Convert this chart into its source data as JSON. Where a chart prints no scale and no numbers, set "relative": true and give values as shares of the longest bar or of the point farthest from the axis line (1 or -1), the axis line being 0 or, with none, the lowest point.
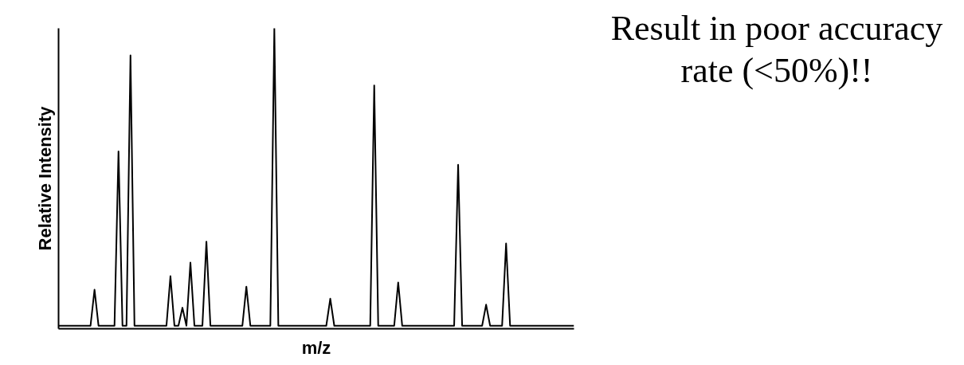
{
  "chart_data": {
    "type": "line",
    "relative": true,
    "xlabel": "m/z",
    "ylabel": "Relative Intensity",
    "grid": false,
    "annotations": [
      "Result in poor accuracy rate (<50%)!!"
    ],
    "categories": [
      null,
      null,
      null,
      null,
      null,
      null,
      null,
      null,
      null,
      null,
      null,
      null,
      null,
      null,
      null,
      null,
      null,
      null,
      null,
      null,
      null,
      null,
      null,
      null,
      null,
      null,
      null,
      null,
      null,
      null,
      null,
      null,
      null,
      null,
      null,
      null,
      null,
      null,
      null,
      null,
      null,
      null,
      null,
      null,
      null,
      null,
      null,
      null,
      null,
      null,
      null,
      null,
      null,
      null,
      null,
      null,
      null,
      null,
      null,
      null,
      null,
      null,
      null,
      null,
      null,
      null,
      null,
      null,
      null,
      null,
      null,
      null,
      null,
      null,
      null,
      null,
      null,
      null,
      null,
      null,
      null,
      null,
      null,
      null,
      null,
      null,
      null,
      null,
      null,
      null,
      null,
      null,
      null,
      null,
      null,
      null,
      null,
      null,
      null,
      null,
      null,
      null,
      null,
      null,
      null,
      null,
      null,
      null,
      null,
      null,
      null,
      null,
      null,
      null,
      null,
      null,
      null,
      null,
      null,
      null,
      null,
      null,
      null,
      null,
      null,
      null,
      null,
      null,
      null,
      null
    ],
    "series": [
      {
        "color": "#000000",
        "values": [
          0.01,
          0.01,
          0.01,
          0.01,
          0.01,
          0.01,
          0.01,
          0.01,
          0.01,
          0.13,
          0.01,
          0.01,
          0.01,
          0.01,
          0.01,
          0.59,
          0.01,
          0.01,
          0.91,
          0.01,
          0.01,
          0.01,
          0.01,
          0.01,
          0.01,
          0.01,
          0.01,
          0.01,
          0.175,
          0.01,
          0.01,
          0.07,
          0.01,
          0.22,
          0.01,
          0.01,
          0.01,
          0.29,
          0.01,
          0.01,
          0.01,
          0.01,
          0.01,
          0.01,
          0.01,
          0.01,
          0.01,
          0.14,
          0.01,
          0.01,
          0.01,
          0.01,
          0.01,
          0.01,
          1.0,
          0.01,
          0.01,
          0.01,
          0.01,
          0.01,
          0.01,
          0.01,
          0.01,
          0.01,
          0.01,
          0.01,
          0.01,
          0.01,
          0.1,
          0.01,
          0.01,
          0.01,
          0.01,
          0.01,
          0.01,
          0.01,
          0.01,
          0.01,
          0.01,
          0.81,
          0.01,
          0.01,
          0.01,
          0.01,
          0.01,
          0.154,
          0.01,
          0.01,
          0.01,
          0.01,
          0.01,
          0.01,
          0.01,
          0.01,
          0.01,
          0.01,
          0.01,
          0.01,
          0.01,
          0.01,
          0.546,
          0.01,
          0.01,
          0.01,
          0.01,
          0.01,
          0.01,
          0.08,
          0.01,
          0.01,
          0.01,
          0.01,
          0.284,
          0.01,
          0.01,
          0.01,
          0.01,
          0.01,
          0.01,
          0.01,
          0.01,
          0.01,
          0.01,
          0.01,
          0.01,
          0.01,
          0.01,
          0.01,
          0.01,
          0.01
        ]
      }
    ]
  }
}
